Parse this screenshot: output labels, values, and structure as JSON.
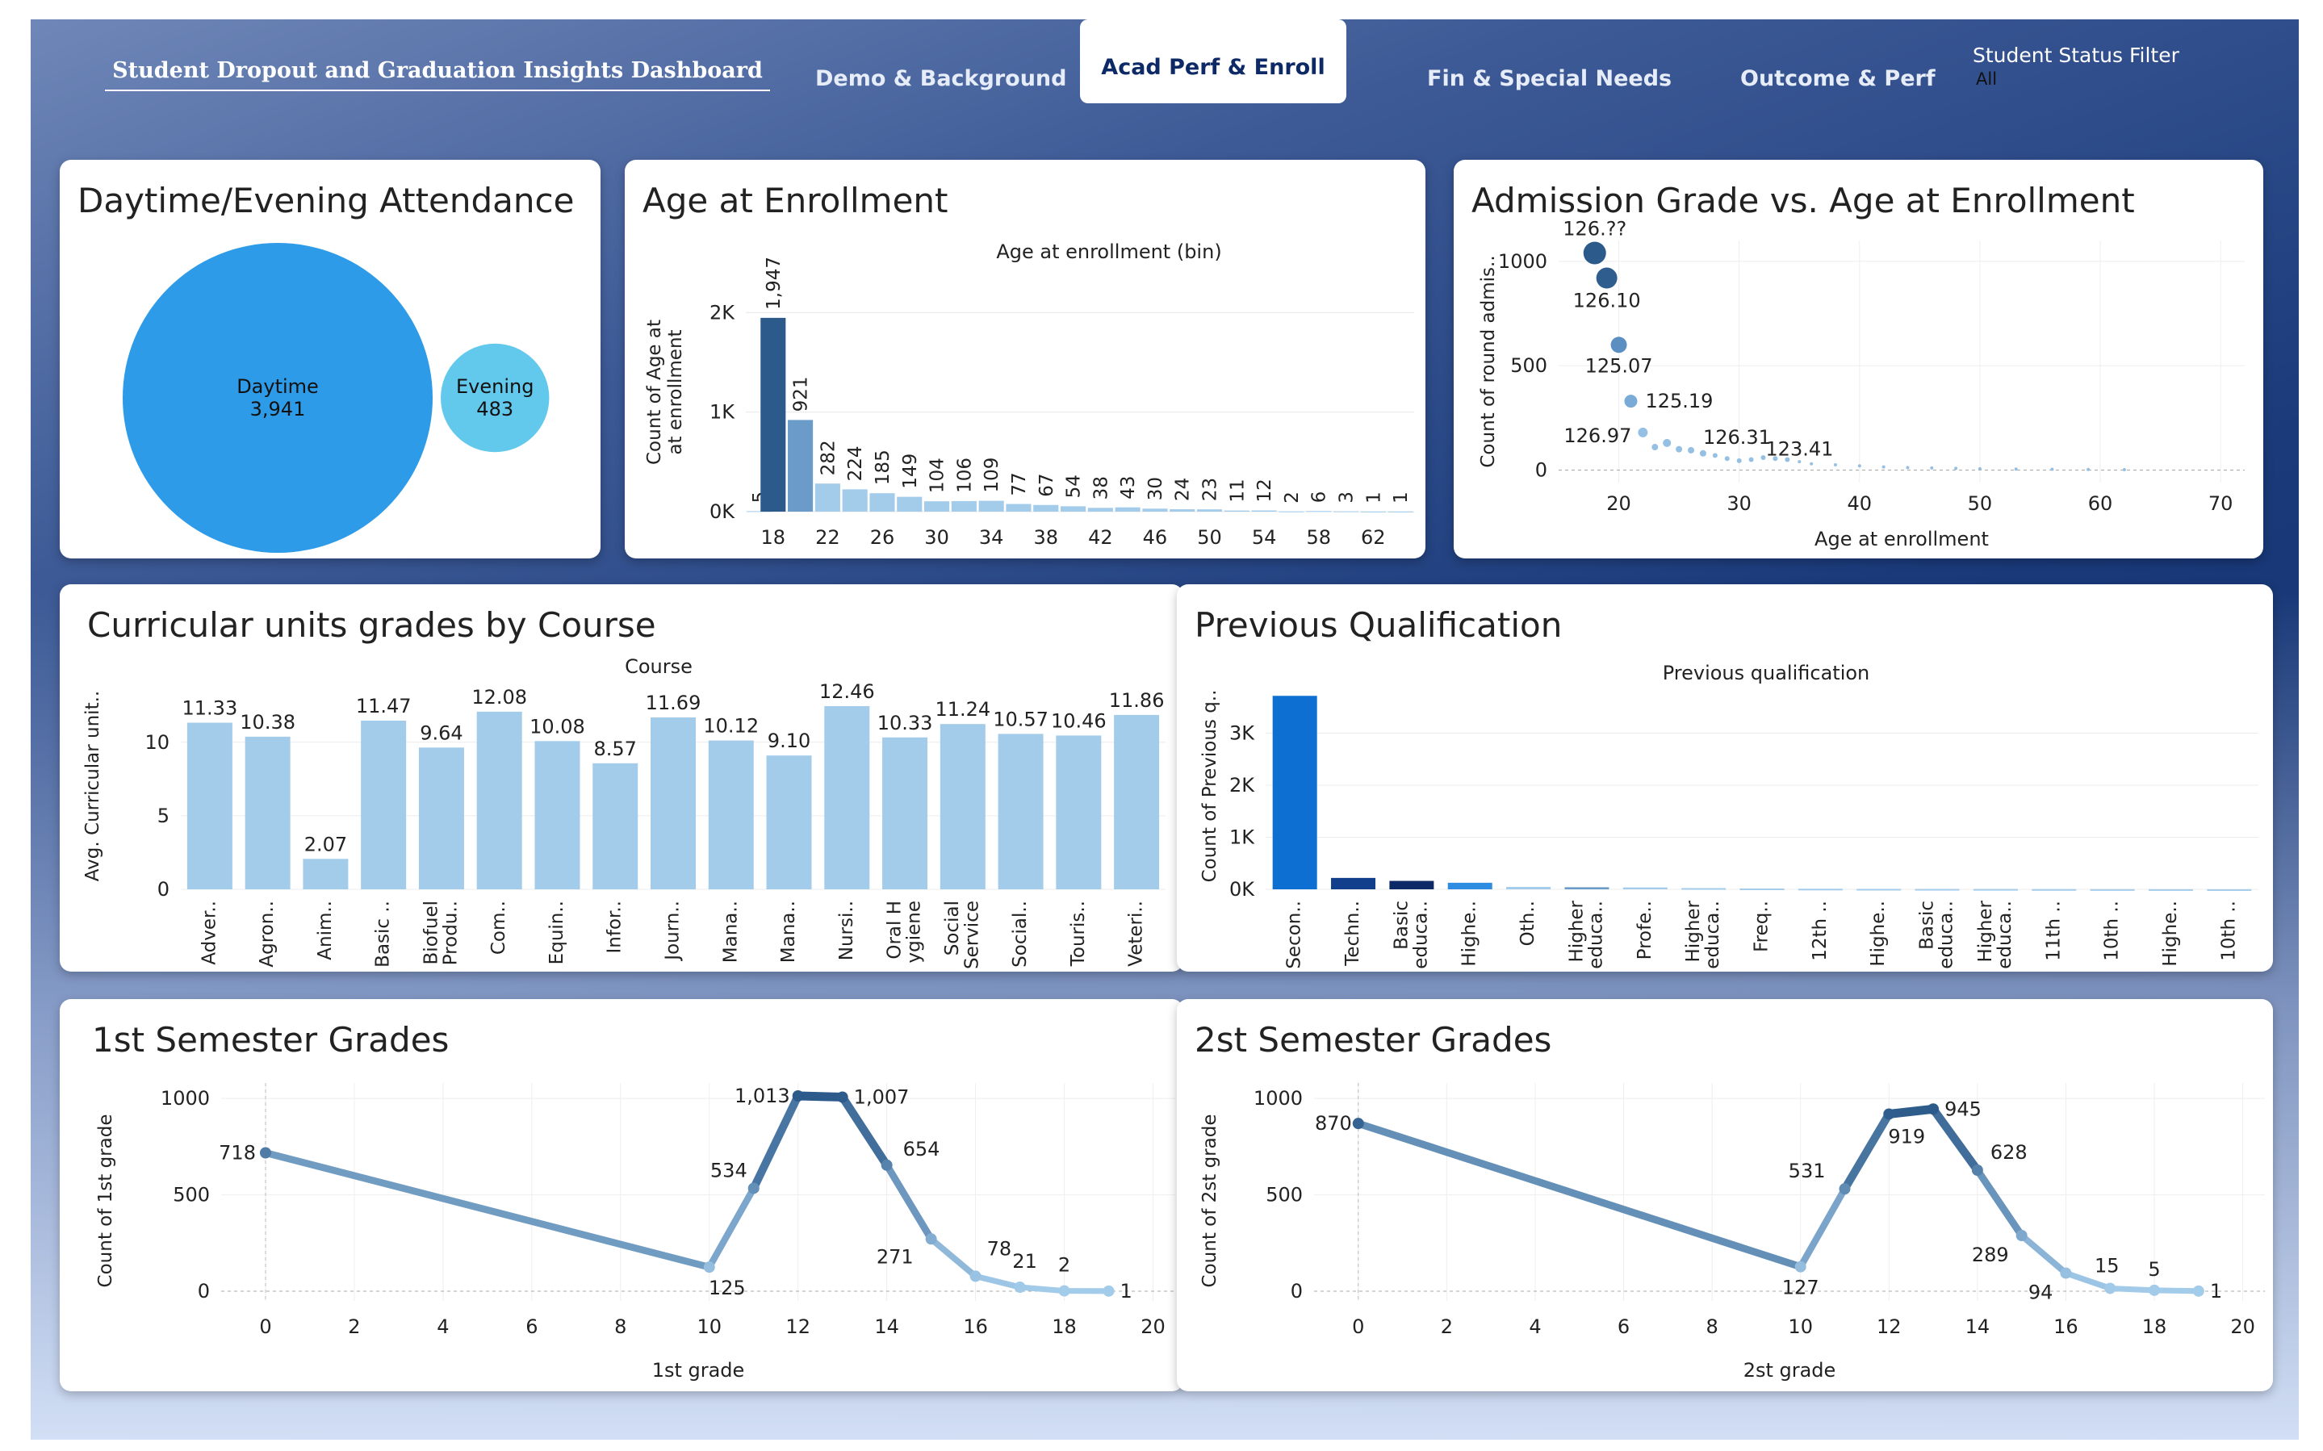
{
  "header": {
    "title": "Student Dropout and Graduation Insights Dashboard",
    "tabs": [
      {
        "label": "Demo & Background"
      },
      {
        "label": "Acad Perf & Enroll"
      },
      {
        "label": "Fin & Special Needs"
      },
      {
        "label": "Outcome & Perf"
      }
    ],
    "filter": {
      "label": "Student Status Filter",
      "value": "All"
    }
  },
  "colors": {
    "dark_blue": "#2c5a8a",
    "mid_blue": "#6a9bc9",
    "light_blue": "#a3cbea",
    "bright_blue": "#2e9be8",
    "cyan": "#63c9ec",
    "navy": "#0e2a66"
  },
  "cards": {
    "attendance": {
      "title": "Daytime/Evening Attendance",
      "chart_data": {
        "type": "bubble",
        "items": [
          {
            "label": "Daytime",
            "value": 3941,
            "display": "3,941"
          },
          {
            "label": "Evening",
            "value": 483,
            "display": "483"
          }
        ]
      }
    },
    "age": {
      "title": "Age at Enrollment",
      "chart_data": {
        "type": "bar",
        "subtitle": "Age at enrollment (bin)",
        "ylabel": "Count of Age at enrollment",
        "ylim": [
          0,
          2400
        ],
        "yticks": [
          {
            "v": 0,
            "label": "0K"
          },
          {
            "v": 1000,
            "label": "1K"
          },
          {
            "v": 2000,
            "label": "2K"
          }
        ],
        "xticks": [
          18,
          22,
          26,
          30,
          34,
          38,
          42,
          46,
          50,
          54,
          58,
          62
        ],
        "x": [
          17,
          18,
          20,
          22,
          24,
          26,
          28,
          30,
          32,
          34,
          36,
          38,
          40,
          42,
          44,
          46,
          48,
          50,
          52,
          54,
          56,
          58,
          60,
          62,
          64
        ],
        "values": [
          5,
          1947,
          921,
          282,
          224,
          185,
          149,
          104,
          106,
          109,
          77,
          67,
          54,
          38,
          43,
          30,
          24,
          23,
          11,
          12,
          2,
          6,
          3,
          1,
          1
        ],
        "labels": [
          "5",
          "1,947",
          "921",
          "282",
          "224",
          "185",
          "149",
          "104",
          "106",
          "109",
          "77",
          "67",
          "54",
          "38",
          "43",
          "30",
          "24",
          "23",
          "11",
          "12",
          "2",
          "6",
          "3",
          "1",
          "1"
        ]
      }
    },
    "admission": {
      "title": "Admission Grade vs. Age at Enrollment",
      "chart_data": {
        "type": "scatter",
        "xlabel": "Age at enrollment",
        "ylabel": "Count of round admis..",
        "xlim": [
          15,
          72
        ],
        "ylim": [
          -60,
          1100
        ],
        "xticks": [
          20,
          30,
          40,
          50,
          60,
          70
        ],
        "yticks": [
          0,
          500,
          1000
        ],
        "points": [
          {
            "x": 18,
            "y": 1040,
            "r": 14,
            "label": "126.??"
          },
          {
            "x": 19,
            "y": 920,
            "r": 13,
            "label": "126.10"
          },
          {
            "x": 20,
            "y": 600,
            "r": 10,
            "label": "125.07"
          },
          {
            "x": 21,
            "y": 330,
            "r": 8,
            "label": "125.19"
          },
          {
            "x": 22,
            "y": 180,
            "r": 6,
            "label": "126.97"
          },
          {
            "x": 23,
            "y": 110,
            "r": 4,
            "label": ""
          },
          {
            "x": 24,
            "y": 130,
            "r": 5,
            "label": ""
          },
          {
            "x": 25,
            "y": 100,
            "r": 4,
            "label": ""
          },
          {
            "x": 26,
            "y": 95,
            "r": 4,
            "label": ""
          },
          {
            "x": 27,
            "y": 80,
            "r": 4,
            "label": "126.31"
          },
          {
            "x": 28,
            "y": 70,
            "r": 3,
            "label": ""
          },
          {
            "x": 29,
            "y": 55,
            "r": 3,
            "label": ""
          },
          {
            "x": 30,
            "y": 45,
            "r": 3,
            "label": ""
          },
          {
            "x": 31,
            "y": 50,
            "r": 3,
            "label": ""
          },
          {
            "x": 32,
            "y": 60,
            "r": 3,
            "label": ""
          },
          {
            "x": 33,
            "y": 55,
            "r": 3,
            "label": "123.41"
          },
          {
            "x": 34,
            "y": 50,
            "r": 3,
            "label": ""
          },
          {
            "x": 35,
            "y": 40,
            "r": 2,
            "label": ""
          },
          {
            "x": 36,
            "y": 30,
            "r": 2,
            "label": ""
          },
          {
            "x": 38,
            "y": 25,
            "r": 2,
            "label": ""
          },
          {
            "x": 40,
            "y": 20,
            "r": 2,
            "label": ""
          },
          {
            "x": 42,
            "y": 15,
            "r": 2,
            "label": ""
          },
          {
            "x": 44,
            "y": 12,
            "r": 2,
            "label": ""
          },
          {
            "x": 46,
            "y": 10,
            "r": 2,
            "label": ""
          },
          {
            "x": 48,
            "y": 8,
            "r": 2,
            "label": ""
          },
          {
            "x": 50,
            "y": 6,
            "r": 2,
            "label": ""
          },
          {
            "x": 53,
            "y": 5,
            "r": 2,
            "label": ""
          },
          {
            "x": 56,
            "y": 4,
            "r": 2,
            "label": ""
          },
          {
            "x": 59,
            "y": 3,
            "r": 2,
            "label": ""
          },
          {
            "x": 62,
            "y": 2,
            "r": 2,
            "label": ""
          }
        ]
      }
    },
    "course": {
      "title": "Curricular units grades by Course",
      "chart_data": {
        "type": "bar",
        "subtitle": "Course",
        "ylabel": "Avg. Curricular unit..",
        "ylim": [
          0,
          13.5
        ],
        "yticks": [
          0,
          5,
          10
        ],
        "categories": [
          "Adver..",
          "Agron..",
          "Anim..",
          "Basic ..",
          "Biofuel\nProdu..",
          "Com..",
          "Equin..",
          "Infor..",
          "Journ..",
          "Mana..",
          "Mana..",
          "Nursi..",
          "Oral H\nygiene",
          "Social\nService",
          "Social..",
          "Touris..",
          "Veteri.."
        ],
        "values": [
          11.33,
          10.38,
          2.07,
          11.47,
          9.64,
          12.08,
          10.08,
          8.57,
          11.69,
          10.12,
          9.1,
          12.46,
          10.33,
          11.24,
          10.57,
          10.46,
          11.86
        ],
        "labels": [
          "11.33",
          "10.38",
          "2.07",
          "11.47",
          "9.64",
          "12.08",
          "10.08",
          "8.57",
          "11.69",
          "10.12",
          "9.10",
          "12.46",
          "10.33",
          "11.24",
          "10.57",
          "10.46",
          "11.86"
        ]
      }
    },
    "prevqual": {
      "title": "Previous Qualification",
      "chart_data": {
        "type": "bar",
        "subtitle": "Previous qualification",
        "ylabel": "Count of Previous q..",
        "ylim": [
          0,
          4000
        ],
        "yticks": [
          {
            "v": 0,
            "label": "0K"
          },
          {
            "v": 1000,
            "label": "1K"
          },
          {
            "v": 2000,
            "label": "2K"
          },
          {
            "v": 3000,
            "label": "3K"
          }
        ],
        "categories": [
          "Secon..",
          "Techn..",
          "Basic\neduca..",
          "Highe..",
          "Oth..",
          "Higher\neduca..",
          "Profe..",
          "Higher\neduca..",
          "Freq..",
          "12th ..",
          "Highe..",
          "Basic\neduca..",
          "Higher\neduca..",
          "11th ..",
          "10th ..",
          "Highe..",
          "10th .."
        ],
        "values": [
          3717,
          219,
          162,
          126,
          45,
          40,
          36,
          23,
          16,
          11,
          8,
          7,
          6,
          4,
          3,
          2,
          1
        ],
        "colors": [
          "#0d6fd1",
          "#123f8c",
          "#0e2a66",
          "#2e8de0",
          "#a3cbea",
          "#6a9bc9",
          "#a3cbea",
          "#a3cbea",
          "#a3cbea",
          "#a3cbea",
          "#a3cbea",
          "#a3cbea",
          "#a3cbea",
          "#a3cbea",
          "#a3cbea",
          "#a3cbea",
          "#a3cbea"
        ]
      }
    },
    "sem1": {
      "title": "1st Semester Grades",
      "chart_data": {
        "type": "line",
        "xlabel": "1st grade",
        "ylabel": "Count of 1st grade",
        "xlim": [
          -1,
          20.5
        ],
        "ylim": [
          -50,
          1080
        ],
        "xticks": [
          0,
          2,
          4,
          6,
          8,
          10,
          12,
          14,
          16,
          18,
          20
        ],
        "yticks": [
          0,
          500,
          1000
        ],
        "x": [
          0,
          10,
          11,
          12,
          13,
          14,
          15,
          16,
          17,
          18,
          19
        ],
        "values": [
          718,
          125,
          534,
          1013,
          1007,
          654,
          271,
          78,
          21,
          2,
          1
        ],
        "labels": [
          "718",
          "125",
          "534",
          "1,013",
          "1,007",
          "654",
          "271",
          "78",
          "21",
          "2",
          "1"
        ]
      }
    },
    "sem2": {
      "title": "2st Semester Grades",
      "chart_data": {
        "type": "line",
        "xlabel": "2st grade",
        "ylabel": "Count of 2st grade",
        "xlim": [
          -1,
          20.5
        ],
        "ylim": [
          -50,
          1080
        ],
        "xticks": [
          0,
          2,
          4,
          6,
          8,
          10,
          12,
          14,
          16,
          18,
          20
        ],
        "yticks": [
          0,
          500,
          1000
        ],
        "x": [
          0,
          10,
          11,
          12,
          13,
          14,
          15,
          16,
          17,
          18,
          19
        ],
        "values": [
          870,
          127,
          531,
          919,
          945,
          628,
          289,
          94,
          15,
          5,
          1
        ],
        "labels": [
          "870",
          "127",
          "531",
          "919",
          "945",
          "628",
          "289",
          "94",
          "15",
          "5",
          "1"
        ]
      }
    }
  }
}
